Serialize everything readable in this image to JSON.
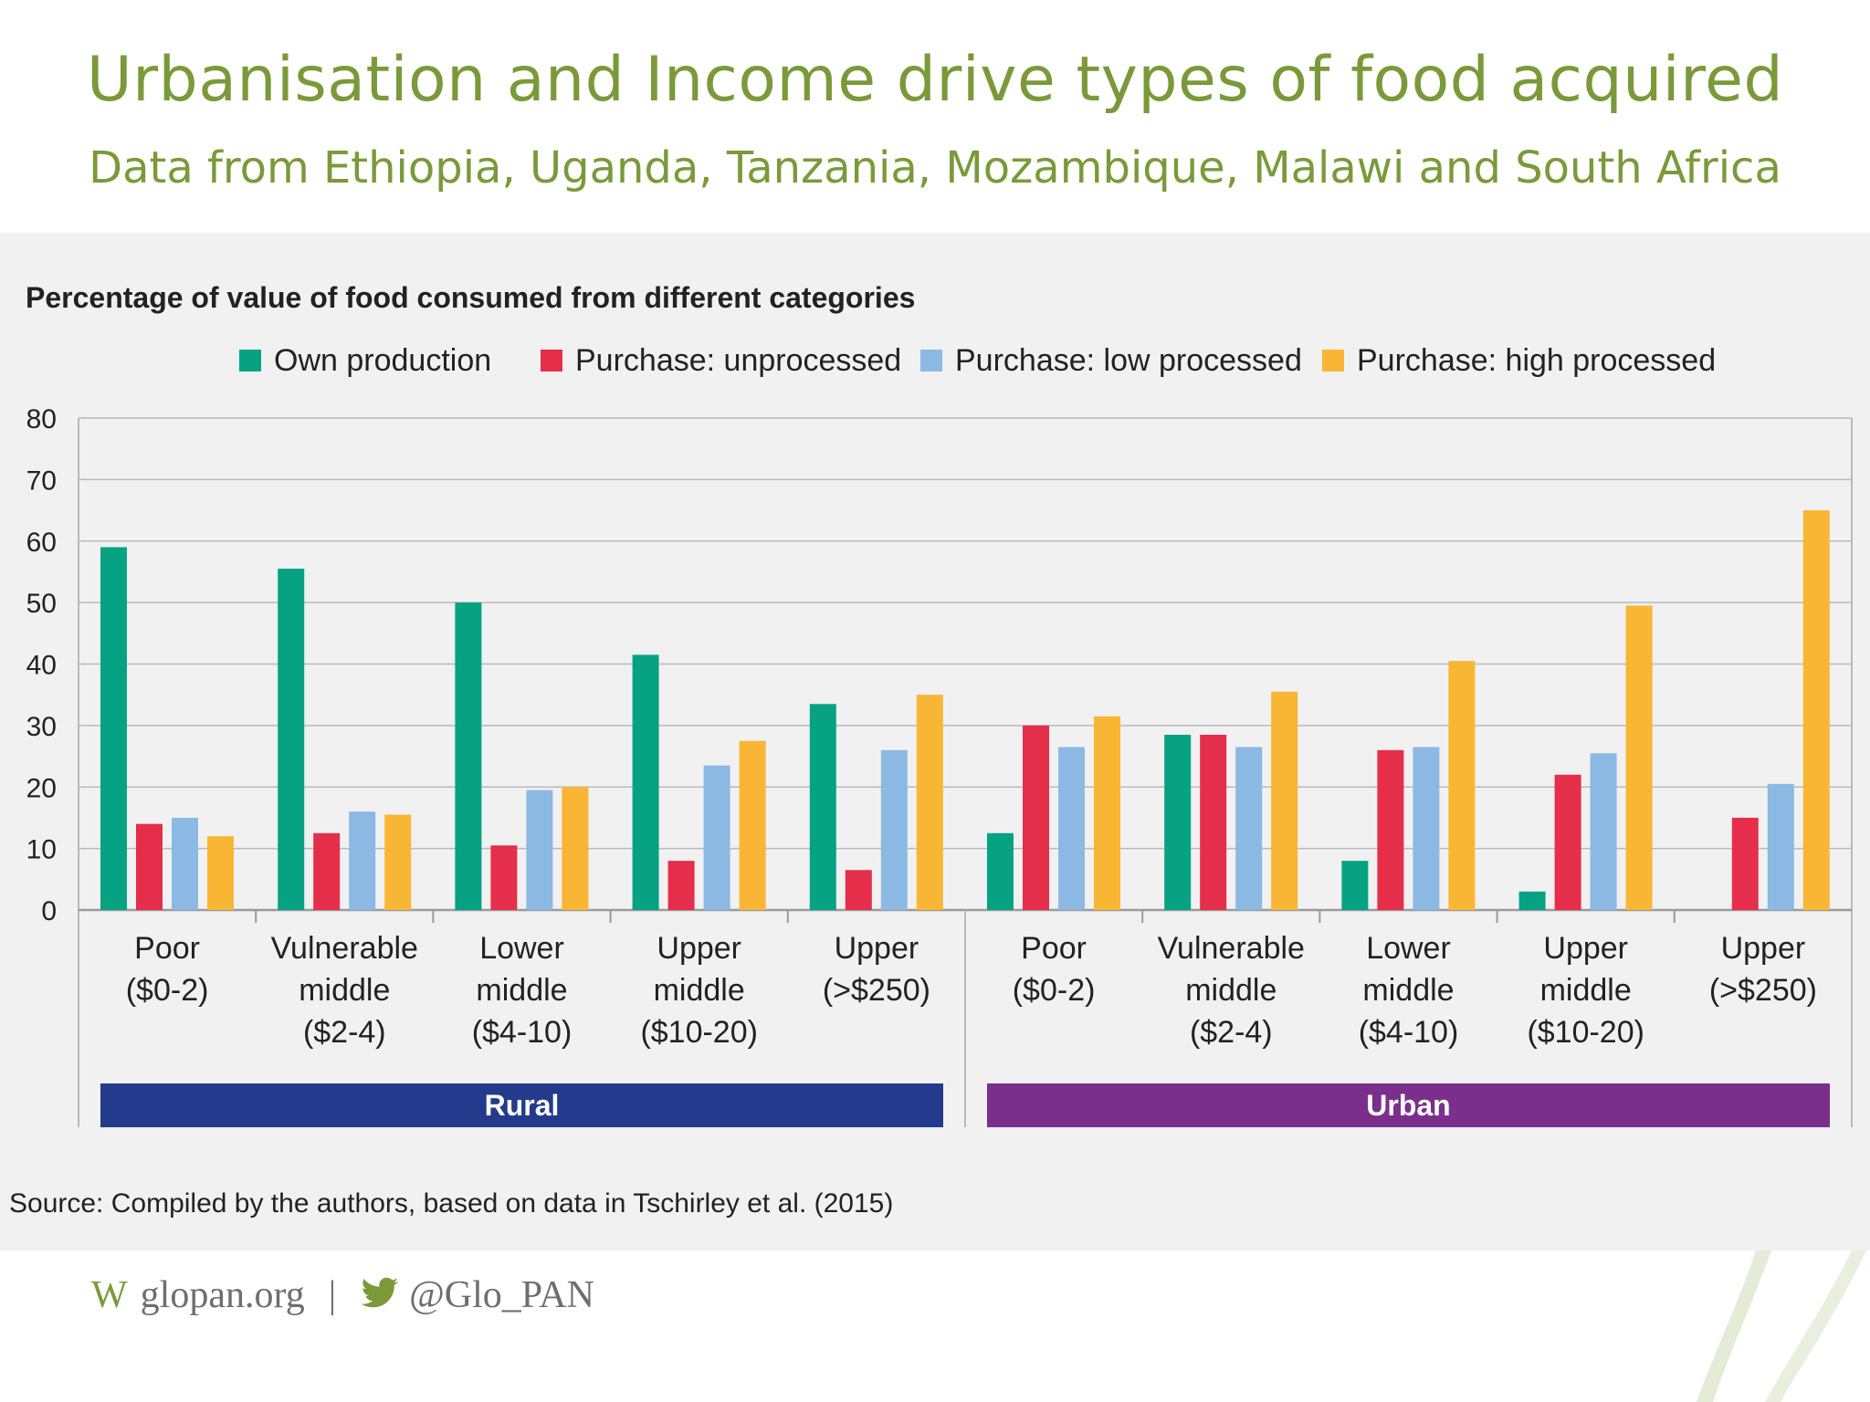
{
  "slide": {
    "title": "Urbanisation and Income drive types of food acquired",
    "subtitle": "Data from Ethiopia, Uganda, Tanzania, Mozambique, Malawi and South Africa"
  },
  "chart_data": {
    "type": "bar",
    "title": "Percentage of value of food consumed from different categories",
    "ylim": [
      0,
      80
    ],
    "yticks": [
      0,
      10,
      20,
      30,
      40,
      50,
      60,
      70,
      80
    ],
    "legend_position": "top",
    "grid": true,
    "groups": [
      {
        "name": "Rural",
        "color": "#243a8c"
      },
      {
        "name": "Urban",
        "color": "#7b2f8c"
      }
    ],
    "categories": [
      {
        "lines": [
          "Poor",
          "($0-2)"
        ],
        "group": "Rural"
      },
      {
        "lines": [
          "Vulnerable",
          "middle",
          "($2-4)"
        ],
        "group": "Rural"
      },
      {
        "lines": [
          "Lower",
          "middle",
          "($4-10)"
        ],
        "group": "Rural"
      },
      {
        "lines": [
          "Upper",
          "middle",
          "($10-20)"
        ],
        "group": "Rural"
      },
      {
        "lines": [
          "Upper",
          "(>$250)"
        ],
        "group": "Rural"
      },
      {
        "lines": [
          "Poor",
          "($0-2)"
        ],
        "group": "Urban"
      },
      {
        "lines": [
          "Vulnerable",
          "middle",
          "($2-4)"
        ],
        "group": "Urban"
      },
      {
        "lines": [
          "Lower",
          "middle",
          "($4-10)"
        ],
        "group": "Urban"
      },
      {
        "lines": [
          "Upper",
          "middle",
          "($10-20)"
        ],
        "group": "Urban"
      },
      {
        "lines": [
          "Upper",
          "(>$250)"
        ],
        "group": "Urban"
      }
    ],
    "series": [
      {
        "name": "Own production",
        "color": "#07a282",
        "values": [
          59,
          55.5,
          50,
          41.5,
          33.5,
          12.5,
          28.5,
          8,
          3,
          0
        ]
      },
      {
        "name": "Purchase: unprocessed",
        "color": "#e52e4a",
        "values": [
          14,
          12.5,
          10.5,
          8,
          6.5,
          30,
          28.5,
          26,
          22,
          15
        ]
      },
      {
        "name": "Purchase: low processed",
        "color": "#8cb8e4",
        "values": [
          15,
          16,
          19.5,
          23.5,
          26,
          26.5,
          26.5,
          26.5,
          25.5,
          20.5
        ]
      },
      {
        "name": "Purchase: high processed",
        "color": "#f8b634",
        "values": [
          12,
          15.5,
          20,
          27.5,
          35,
          31.5,
          35.5,
          40.5,
          49.5,
          65
        ]
      }
    ],
    "source": "Source: Compiled by the authors, based on data in Tschirley et al. (2015)"
  },
  "footer": {
    "web_mark": "W",
    "website": "glopan.org",
    "separator": "|",
    "twitter_icon": "twitter-bird-icon",
    "twitter_handle": "@Glo_PAN"
  }
}
